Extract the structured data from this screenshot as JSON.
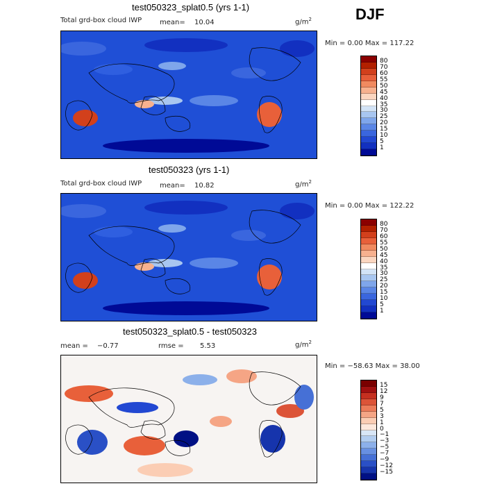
{
  "season": "DJF",
  "panels": [
    {
      "title": "test050323_splat0.5 (yrs 1-1)",
      "subtitle": "Total grd-box cloud IWP",
      "mean_label": "mean=",
      "mean_value": "10.04",
      "units": "g/m",
      "units_sup": "2",
      "minmax": "Min =   0.00 Max = 117.22",
      "colorbar_labels": [
        "80",
        "70",
        "60",
        "55",
        "50",
        "45",
        "40",
        "35",
        "30",
        "25",
        "20",
        "15",
        "10",
        "5",
        "1"
      ]
    },
    {
      "title": "test050323 (yrs 1-1)",
      "subtitle": "Total grd-box cloud IWP",
      "mean_label": "mean=",
      "mean_value": "10.82",
      "units": "g/m",
      "units_sup": "2",
      "minmax": "Min =   0.00 Max = 122.22",
      "colorbar_labels": [
        "80",
        "70",
        "60",
        "55",
        "50",
        "45",
        "40",
        "35",
        "30",
        "25",
        "20",
        "15",
        "10",
        "5",
        "1"
      ]
    },
    {
      "title": "test050323_splat0.5 - test050323",
      "mean_label": "mean =",
      "mean_value": "−0.77",
      "rmse_label": "rmse =",
      "rmse_value": "5.53",
      "units": "g/m",
      "units_sup": "2",
      "minmax": "Min = −58.63 Max =  38.00",
      "colorbar_labels": [
        "15",
        "12",
        "9",
        "7",
        "5",
        "3",
        "1",
        "0",
        "−1",
        "−3",
        "−5",
        "−7",
        "−9",
        "−12",
        "−15"
      ]
    }
  ],
  "colors": {
    "abs_scale": [
      "#8b0000",
      "#b22000",
      "#d2401c",
      "#e8603a",
      "#f08a60",
      "#f7b18f",
      "#fbd6c0",
      "#ffffff",
      "#d2e3f6",
      "#a8c6f0",
      "#7fa6eb",
      "#5a86e6",
      "#3a66de",
      "#2248d2",
      "#1230c0",
      "#000a96"
    ],
    "diff_scale": [
      "#7a0000",
      "#a01010",
      "#c53020",
      "#dc5438",
      "#ec7c5a",
      "#f5a585",
      "#fbcdb4",
      "#fde8dc",
      "#d8e6f6",
      "#b2cdf0",
      "#8cb0ea",
      "#6890e2",
      "#4670d6",
      "#2a50c6",
      "#1634ac",
      "#001084"
    ]
  }
}
